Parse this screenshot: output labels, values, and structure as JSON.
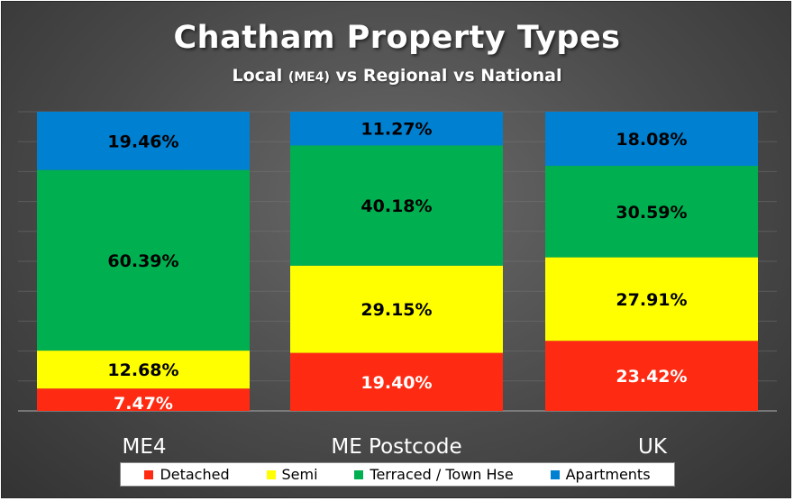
{
  "chart_data": {
    "type": "bar",
    "stacked": true,
    "percent_stacked": true,
    "title": "Chatham Property Types",
    "subtitle": {
      "prefix": "Local ",
      "small": "(ME4)",
      "suffix": " vs Regional vs National"
    },
    "categories": [
      "ME4",
      "ME Postcode",
      "UK"
    ],
    "series": [
      {
        "name": "Detached",
        "color": "#ff2a12",
        "values": [
          7.47,
          19.4,
          23.42
        ],
        "labels": [
          "7.47%",
          "19.40%",
          "23.42%"
        ],
        "label_color": "#ffffff"
      },
      {
        "name": "Semi",
        "color": "#ffff00",
        "values": [
          12.68,
          29.15,
          27.91
        ],
        "labels": [
          "12.68%",
          "29.15%",
          "27.91%"
        ],
        "label_color": "#000000"
      },
      {
        "name": "Terraced / Town Hse",
        "color": "#00b050",
        "values": [
          60.39,
          40.18,
          30.59
        ],
        "labels": [
          "60.39%",
          "40.18%",
          "30.59%"
        ],
        "label_color": "#000000"
      },
      {
        "name": "Apartments",
        "color": "#0080d0",
        "values": [
          19.46,
          11.27,
          18.08
        ],
        "labels": [
          "19.46%",
          "11.27%",
          "18.08%"
        ],
        "label_color": "#000000"
      }
    ],
    "ylim": [
      0,
      100
    ],
    "grid": true,
    "legend_position": "bottom"
  }
}
